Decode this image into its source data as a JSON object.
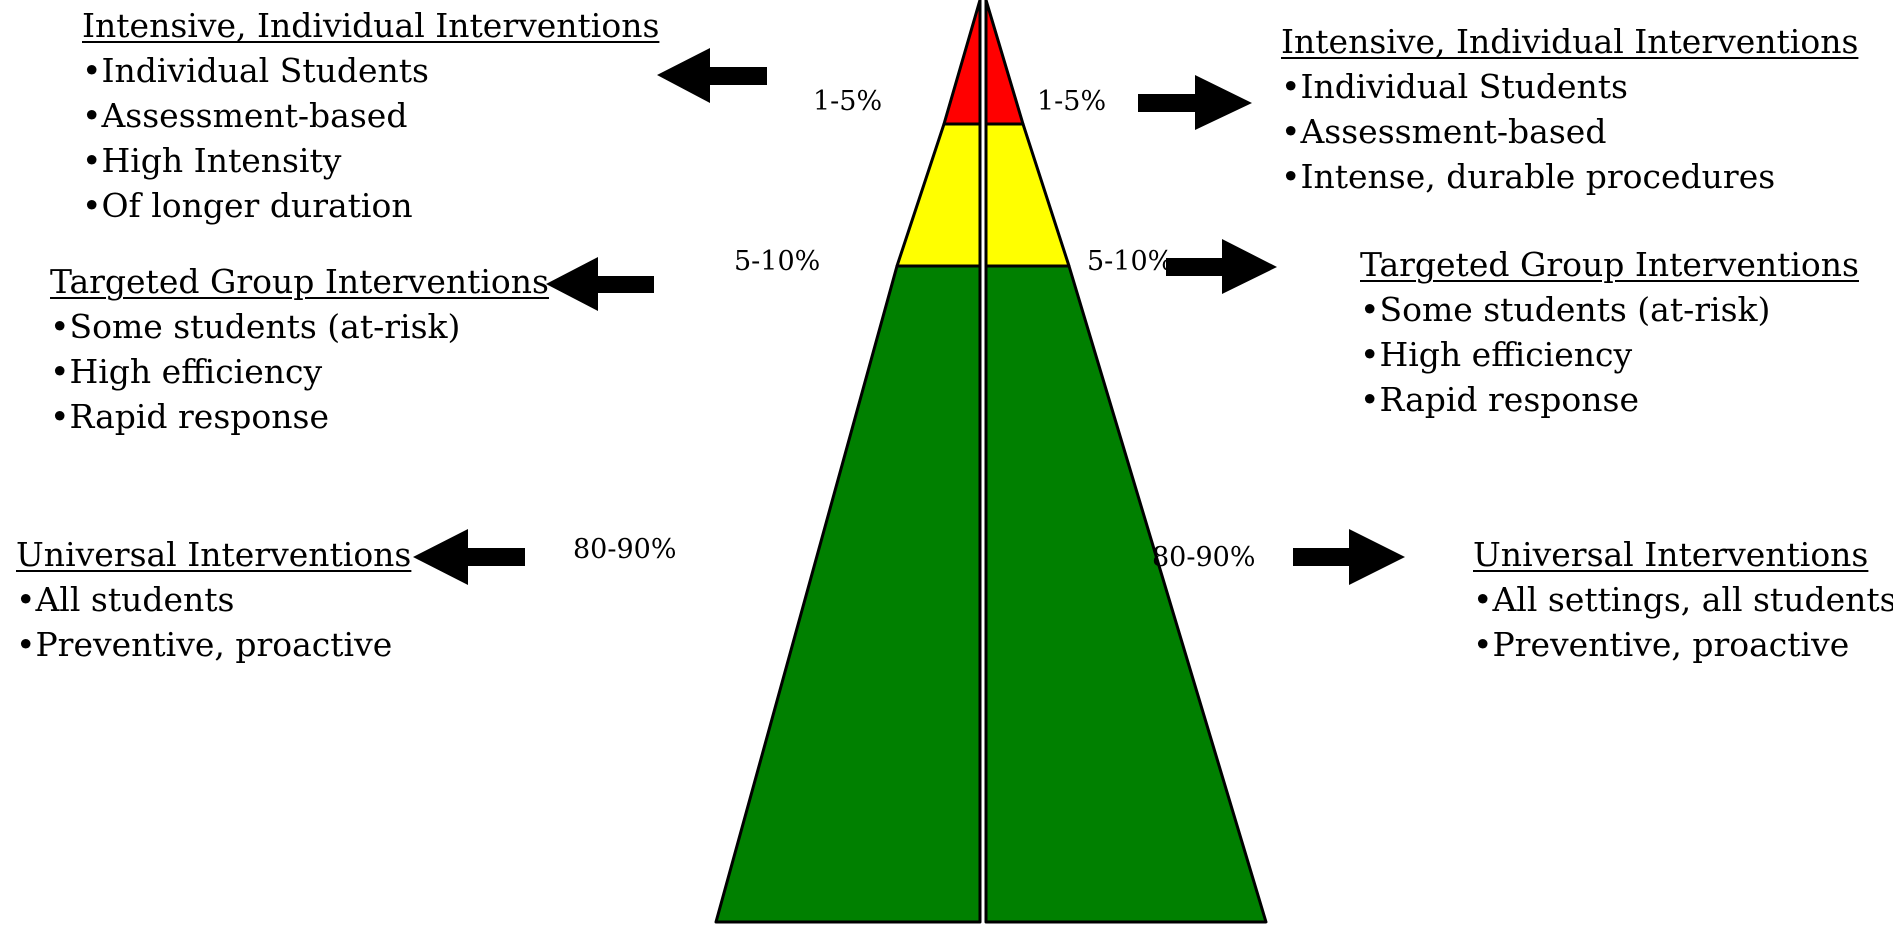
{
  "colors": {
    "top_tier": "#ff0000",
    "middle_tier": "#ffff00",
    "bottom_tier": "#008000",
    "outline": "#000000",
    "arrow": "#000000",
    "background": "#ffffff"
  },
  "left": {
    "intensive": {
      "heading": "Intensive, Individual Interventions",
      "items": [
        "•Individual Students",
        "•Assessment-based",
        "•High Intensity",
        "•Of longer duration"
      ],
      "percent": "1-5%"
    },
    "targeted": {
      "heading": "Targeted Group Interventions",
      "items": [
        "•Some students (at-risk)",
        "•High efficiency",
        "•Rapid response"
      ],
      "percent": "5-10%"
    },
    "universal": {
      "heading": "Universal Interventions",
      "items": [
        "•All students",
        "•Preventive,  proactive"
      ],
      "percent": "80-90%"
    }
  },
  "right": {
    "intensive": {
      "heading": "Intensive, Individual Interventions",
      "items": [
        "•Individual Students",
        "•Assessment-based",
        "•Intense, durable procedures"
      ],
      "percent": "1-5%"
    },
    "targeted": {
      "heading": "Targeted Group Interventions",
      "items": [
        "•Some students (at-risk)",
        "•High efficiency",
        "•Rapid response"
      ],
      "percent": "5-10%"
    },
    "universal": {
      "heading": "Universal Interventions",
      "items": [
        "•All settings, all students",
        "•Preventive,  proactive"
      ],
      "percent": "80-90%"
    }
  },
  "icons": {
    "left_arrow": "arrow-left-icon",
    "right_arrow": "arrow-right-icon"
  }
}
